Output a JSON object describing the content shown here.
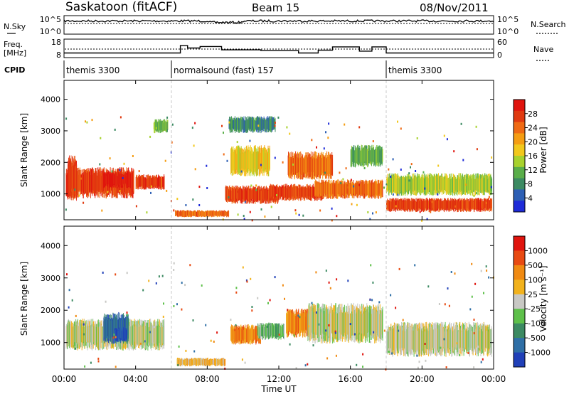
{
  "header": {
    "station": "Saskatoon (fitACF)",
    "beam": "Beam 15",
    "date": "08/Nov/2011"
  },
  "noise_panel": {
    "left_label": "N.Sky",
    "right_label": "N.Search",
    "left_ticks": [
      "10^5",
      "10^0"
    ],
    "right_ticks": [
      "10^5",
      "10^0"
    ]
  },
  "freq_panel": {
    "left_label_line1": "Freq.",
    "left_label_line2": "[MHz]",
    "left_ticks": [
      "18",
      "8"
    ],
    "right_label": "Nave",
    "right_ticks": [
      "60",
      "0"
    ]
  },
  "cpid": {
    "label": "CPID",
    "segments": [
      {
        "name": "themis 3300",
        "start_h": 0,
        "end_h": 6
      },
      {
        "name": "normalsound (fast) 157",
        "start_h": 6,
        "end_h": 18
      },
      {
        "name": "themis 3300",
        "start_h": 18,
        "end_h": 24
      }
    ]
  },
  "power_panel": {
    "ylabel": "Slant Range [km]",
    "colorbar_label": "Power [dB]",
    "colorbar_ticks": [
      "28",
      "24",
      "20",
      "16",
      "12",
      "8",
      "4"
    ],
    "colors": [
      "#1e2bd8",
      "#2d5fb4",
      "#3c8a62",
      "#5aae4a",
      "#a8d22e",
      "#f2c81c",
      "#f59d12",
      "#ef6a14",
      "#e03a10",
      "#e0140e"
    ]
  },
  "velocity_panel": {
    "ylabel": "Slant Range [km]",
    "colorbar_label": "Velocity [m s⁻¹]",
    "colorbar_ticks": [
      "1000",
      "500",
      "100",
      "25",
      "-25",
      "-100",
      "-500",
      "-1000"
    ],
    "colors": [
      "#2040b8",
      "#2f6fa6",
      "#3c8a62",
      "#5ec04a",
      "#c8c8c4",
      "#f2b21c",
      "#f08a12",
      "#e84a12",
      "#e0140e"
    ]
  },
  "chart_data": {
    "type": "heatmap",
    "x_unit": "hours UT",
    "xlim": [
      0,
      24
    ],
    "xticks": [
      "00:00",
      "04:00",
      "08:00",
      "12:00",
      "16:00",
      "20:00",
      "00:00"
    ],
    "xlabel": "Time UT",
    "ylim": [
      180,
      4600
    ],
    "yticks": [
      "1000",
      "2000",
      "3000",
      "4000"
    ],
    "freq_steps": [
      {
        "t": 0,
        "freq": 10.5
      },
      {
        "t": 6.5,
        "freq": 14.5
      },
      {
        "t": 6.9,
        "freq": 13.2
      },
      {
        "t": 7.6,
        "freq": 14.0
      },
      {
        "t": 8.8,
        "freq": 12.2
      },
      {
        "t": 11.0,
        "freq": 11.8
      },
      {
        "t": 12.3,
        "freq": 11.8
      },
      {
        "t": 13.1,
        "freq": 10.5
      },
      {
        "t": 14.2,
        "freq": 12.0
      },
      {
        "t": 15.0,
        "freq": 13.8
      },
      {
        "t": 16.5,
        "freq": 11.5
      },
      {
        "t": 17.2,
        "freq": 13.8
      },
      {
        "t": 18.0,
        "freq": 10.5
      },
      {
        "t": 24,
        "freq": 10.5
      }
    ],
    "power_bands": [
      {
        "t0": 0.1,
        "t1": 3.9,
        "r0": 800,
        "r1": 1900,
        "level": 8
      },
      {
        "t0": 0.2,
        "t1": 0.7,
        "r0": 700,
        "r1": 2300,
        "level": 8
      },
      {
        "t0": 2.2,
        "t1": 3.7,
        "r0": 1150,
        "r1": 1750,
        "level": 9
      },
      {
        "t0": 4.0,
        "t1": 5.6,
        "r0": 1100,
        "r1": 1650,
        "level": 8
      },
      {
        "t0": 5.0,
        "t1": 5.8,
        "r0": 2900,
        "r1": 3400,
        "level": 3
      },
      {
        "t0": 6.2,
        "t1": 9.2,
        "r0": 250,
        "r1": 500,
        "level": 7
      },
      {
        "t0": 9.0,
        "t1": 12.0,
        "r0": 650,
        "r1": 1300,
        "level": 8
      },
      {
        "t0": 9.3,
        "t1": 11.5,
        "r0": 1500,
        "r1": 2600,
        "level": 5
      },
      {
        "t0": 9.2,
        "t1": 11.8,
        "r0": 2900,
        "r1": 3500,
        "level": 2
      },
      {
        "t0": 11.5,
        "t1": 14.5,
        "r0": 750,
        "r1": 1350,
        "level": 8
      },
      {
        "t0": 12.5,
        "t1": 15.0,
        "r0": 1400,
        "r1": 2400,
        "level": 7
      },
      {
        "t0": 14.0,
        "t1": 17.8,
        "r0": 800,
        "r1": 1500,
        "level": 7
      },
      {
        "t0": 16.0,
        "t1": 17.8,
        "r0": 1800,
        "r1": 2600,
        "level": 3
      },
      {
        "t0": 18.0,
        "t1": 23.9,
        "r0": 400,
        "r1": 900,
        "level": 8
      },
      {
        "t0": 18.0,
        "t1": 23.9,
        "r0": 900,
        "r1": 1700,
        "level": 4
      }
    ],
    "velocity_bands": [
      {
        "t0": 0.1,
        "t1": 5.6,
        "r0": 700,
        "r1": 1800,
        "level": 4
      },
      {
        "t0": 2.2,
        "t1": 3.6,
        "r0": 900,
        "r1": 2000,
        "level": 1
      },
      {
        "t0": 2.8,
        "t1": 3.5,
        "r0": 1000,
        "r1": 1500,
        "level": 0
      },
      {
        "t0": 6.3,
        "t1": 9.0,
        "r0": 250,
        "r1": 550,
        "level": 5
      },
      {
        "t0": 9.3,
        "t1": 11.0,
        "r0": 900,
        "r1": 1600,
        "level": 6
      },
      {
        "t0": 10.8,
        "t1": 12.3,
        "r0": 1050,
        "r1": 1650,
        "level": 3
      },
      {
        "t0": 12.4,
        "t1": 13.8,
        "r0": 1100,
        "r1": 2100,
        "level": 6
      },
      {
        "t0": 13.6,
        "t1": 17.8,
        "r0": 900,
        "r1": 2300,
        "level": 4
      },
      {
        "t0": 18.0,
        "t1": 23.9,
        "r0": 500,
        "r1": 1700,
        "level": 4
      }
    ]
  }
}
